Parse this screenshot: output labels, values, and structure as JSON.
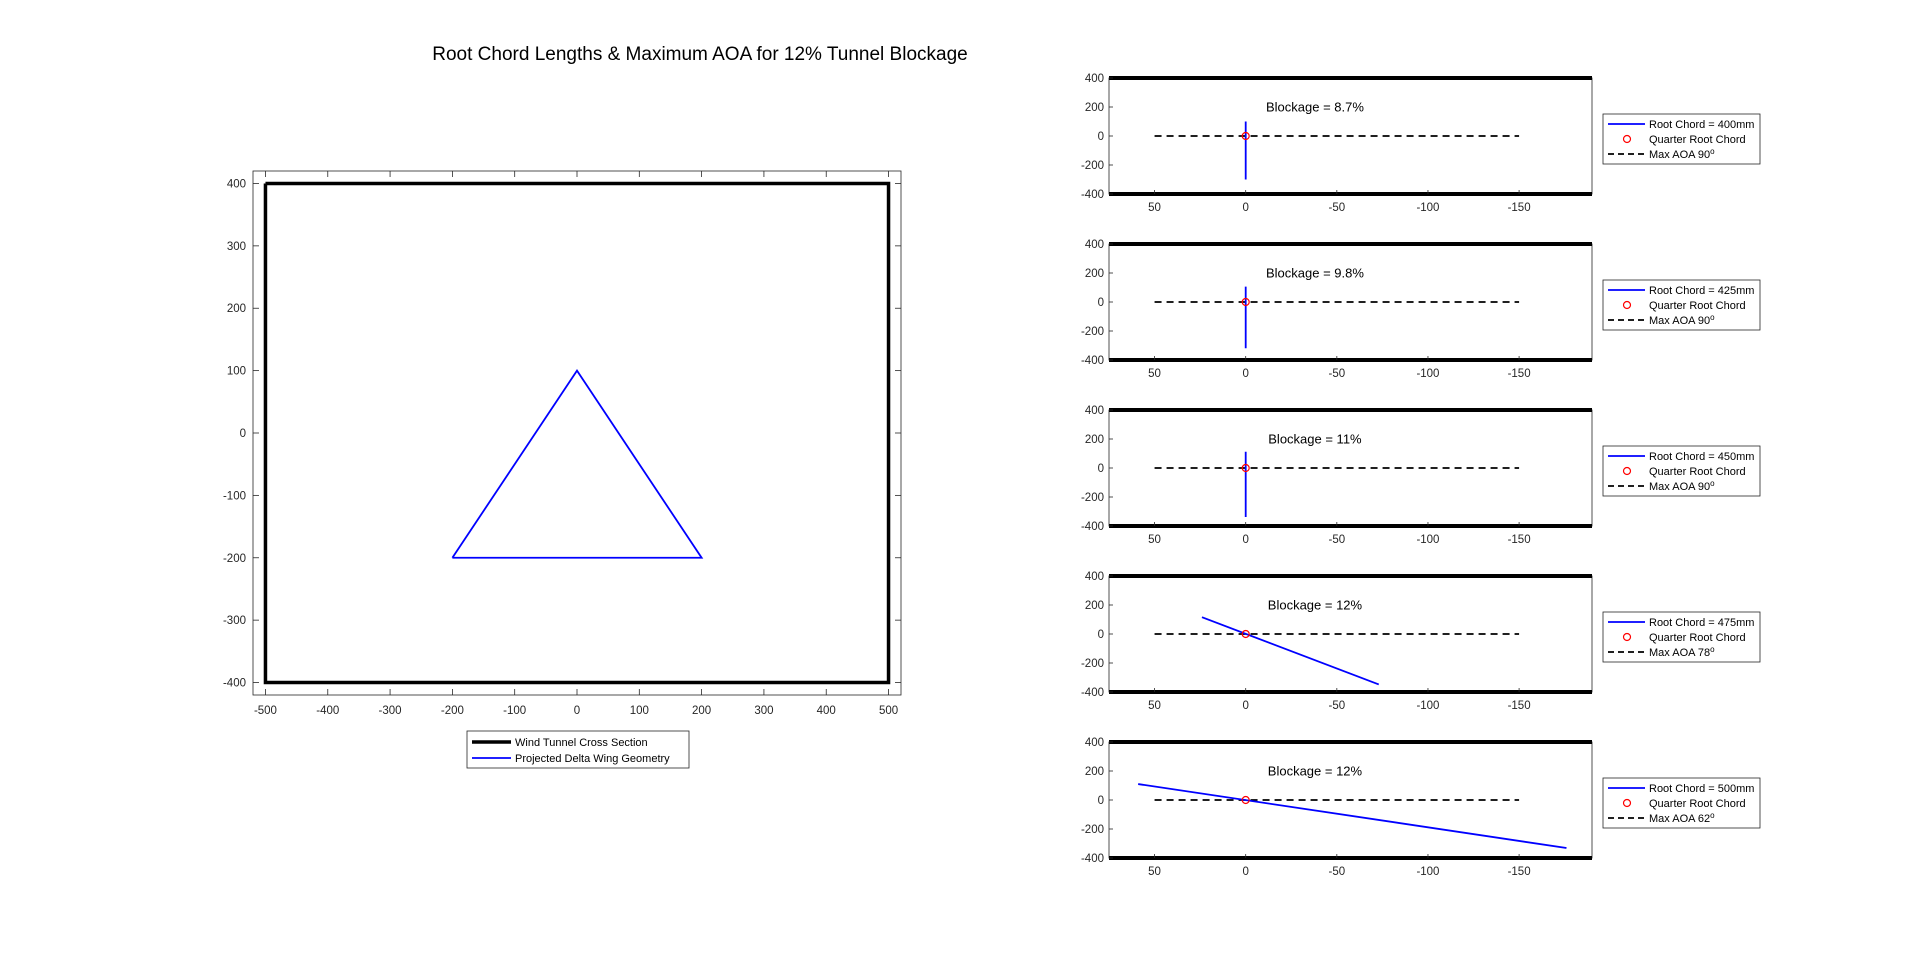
{
  "figure": {
    "title": "Root Chord Lengths & Maximum AOA for 12% Tunnel Blockage"
  },
  "colors": {
    "tunnel": "#000000",
    "geometry": "#0000ff",
    "quarter_chord": "#ff0000",
    "max_aoa": "#000000",
    "axes": "#262626"
  },
  "chart_data": [
    {
      "type": "line",
      "name": "cross-section",
      "xlim": [
        -520,
        520
      ],
      "ylim": [
        -420,
        420
      ],
      "xticks": [
        -500,
        -400,
        -300,
        -200,
        -100,
        0,
        100,
        200,
        300,
        400,
        500
      ],
      "yticks": [
        -400,
        -300,
        -200,
        -100,
        0,
        100,
        200,
        300,
        400
      ],
      "xtick_labels": [
        "-500",
        "-400",
        "-300",
        "-200",
        "-100",
        "0",
        "100",
        "200",
        "300",
        "400",
        "500"
      ],
      "ytick_labels": [
        "-400",
        "-300",
        "-200",
        "-100",
        "0",
        "100",
        "200",
        "300",
        "400"
      ],
      "grid": false,
      "legend_position": "below",
      "series": [
        {
          "name": "Wind Tunnel Cross Section",
          "style": "thick-solid",
          "x": [
            -500,
            500,
            500,
            -500,
            -500
          ],
          "y": [
            400,
            400,
            -400,
            -400,
            400
          ]
        },
        {
          "name": "Projected Delta Wing Geometry",
          "style": "solid",
          "x": [
            -200,
            0,
            200,
            -200
          ],
          "y": [
            -200,
            100,
            -200,
            -200
          ]
        }
      ]
    },
    {
      "type": "line",
      "name": "side-view-1",
      "annotation": "Blockage = 8.7%",
      "xlim": [
        75,
        -190
      ],
      "ylim": [
        -400,
        400
      ],
      "xticks": [
        50,
        0,
        -50,
        -100,
        -150
      ],
      "yticks": [
        400,
        200,
        0,
        -200,
        -400
      ],
      "xtick_labels": [
        "50",
        "0",
        "-50",
        "-100",
        "-150"
      ],
      "ytick_labels": [
        "400",
        "200",
        "0",
        "-200",
        "-400"
      ],
      "walls": [
        -400,
        400
      ],
      "legend_position": "right",
      "series": [
        {
          "name": "Root Chord = 400mm",
          "style": "solid",
          "x": [
            0,
            0
          ],
          "y": [
            100,
            -300
          ]
        },
        {
          "name": "Quarter Root Chord",
          "style": "marker",
          "x": [
            0
          ],
          "y": [
            0
          ]
        },
        {
          "name": "Max AOA 90",
          "style": "dashed",
          "x": [
            50,
            -150
          ],
          "y": [
            0,
            0
          ]
        }
      ]
    },
    {
      "type": "line",
      "name": "side-view-2",
      "annotation": "Blockage = 9.8%",
      "xlim": [
        75,
        -190
      ],
      "ylim": [
        -400,
        400
      ],
      "xticks": [
        50,
        0,
        -50,
        -100,
        -150
      ],
      "yticks": [
        400,
        200,
        0,
        -200,
        -400
      ],
      "xtick_labels": [
        "50",
        "0",
        "-50",
        "-100",
        "-150"
      ],
      "ytick_labels": [
        "400",
        "200",
        "0",
        "-200",
        "-400"
      ],
      "walls": [
        -400,
        400
      ],
      "legend_position": "right",
      "series": [
        {
          "name": "Root Chord = 425mm",
          "style": "solid",
          "x": [
            0,
            0
          ],
          "y": [
            106,
            -319
          ]
        },
        {
          "name": "Quarter Root Chord",
          "style": "marker",
          "x": [
            0
          ],
          "y": [
            0
          ]
        },
        {
          "name": "Max AOA 90",
          "style": "dashed",
          "x": [
            50,
            -150
          ],
          "y": [
            0,
            0
          ]
        }
      ]
    },
    {
      "type": "line",
      "name": "side-view-3",
      "annotation": "Blockage = 11%",
      "xlim": [
        75,
        -190
      ],
      "ylim": [
        -400,
        400
      ],
      "xticks": [
        50,
        0,
        -50,
        -100,
        -150
      ],
      "yticks": [
        400,
        200,
        0,
        -200,
        -400
      ],
      "xtick_labels": [
        "50",
        "0",
        "-50",
        "-100",
        "-150"
      ],
      "ytick_labels": [
        "400",
        "200",
        "0",
        "-200",
        "-400"
      ],
      "walls": [
        -400,
        400
      ],
      "legend_position": "right",
      "series": [
        {
          "name": "Root Chord = 450mm",
          "style": "solid",
          "x": [
            0,
            0
          ],
          "y": [
            112,
            -338
          ]
        },
        {
          "name": "Quarter Root Chord",
          "style": "marker",
          "x": [
            0
          ],
          "y": [
            0
          ]
        },
        {
          "name": "Max AOA 90",
          "style": "dashed",
          "x": [
            50,
            -150
          ],
          "y": [
            0,
            0
          ]
        }
      ]
    },
    {
      "type": "line",
      "name": "side-view-4",
      "annotation": "Blockage = 12%",
      "xlim": [
        75,
        -190
      ],
      "ylim": [
        -400,
        400
      ],
      "xticks": [
        50,
        0,
        -50,
        -100,
        -150
      ],
      "yticks": [
        400,
        200,
        0,
        -200,
        -400
      ],
      "xtick_labels": [
        "50",
        "0",
        "-50",
        "-100",
        "-150"
      ],
      "ytick_labels": [
        "400",
        "200",
        "0",
        "-200",
        "-400"
      ],
      "walls": [
        -400,
        400
      ],
      "legend_position": "right",
      "series": [
        {
          "name": "Root Chord = 475mm",
          "style": "solid",
          "x": [
            24,
            -73
          ],
          "y": [
            116,
            -348
          ]
        },
        {
          "name": "Quarter Root Chord",
          "style": "marker",
          "x": [
            0
          ],
          "y": [
            0
          ]
        },
        {
          "name": "Max AOA 78",
          "style": "dashed",
          "x": [
            50,
            -150
          ],
          "y": [
            0,
            0
          ]
        }
      ]
    },
    {
      "type": "line",
      "name": "side-view-5",
      "annotation": "Blockage = 12%",
      "xlim": [
        75,
        -190
      ],
      "ylim": [
        -400,
        400
      ],
      "xticks": [
        50,
        0,
        -50,
        -100,
        -150
      ],
      "yticks": [
        400,
        200,
        0,
        -200,
        -400
      ],
      "xtick_labels": [
        "50",
        "0",
        "-50",
        "-100",
        "-150"
      ],
      "ytick_labels": [
        "400",
        "200",
        "0",
        "-200",
        "-400"
      ],
      "walls": [
        -400,
        400
      ],
      "legend_position": "right",
      "series": [
        {
          "name": "Root Chord = 500mm",
          "style": "solid",
          "x": [
            59,
            -176
          ],
          "y": [
            110,
            -331
          ]
        },
        {
          "name": "Quarter Root Chord",
          "style": "marker",
          "x": [
            0
          ],
          "y": [
            0
          ]
        },
        {
          "name": "Max AOA 62",
          "style": "dashed",
          "x": [
            50,
            -150
          ],
          "y": [
            0,
            0
          ]
        }
      ]
    }
  ]
}
